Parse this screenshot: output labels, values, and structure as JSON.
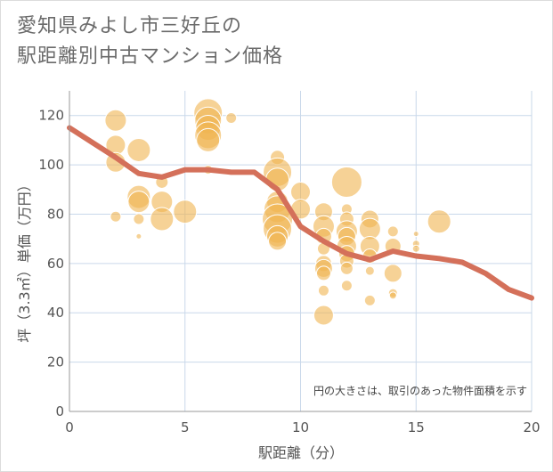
{
  "title_line1": "愛知県みよし市三好丘の",
  "title_line2": "駅距離別中古マンション価格",
  "chart_data": {
    "type": "scatter",
    "xlabel": "駅距離（分）",
    "ylabel": "坪（3.3㎡）単価（万円）",
    "xlim": [
      0,
      20
    ],
    "ylim": [
      0,
      130
    ],
    "x_ticks": [
      "0",
      "5",
      "10",
      "15",
      "20"
    ],
    "y_ticks": [
      "0",
      "20",
      "40",
      "60",
      "80",
      "100",
      "120"
    ],
    "note": "円の大きさは、取引のあった物件面積を示す",
    "grid": true,
    "colors": {
      "bubble": "#f0b450",
      "line": "#d4705a",
      "grid": "#c9d8ea",
      "axis": "#999999"
    },
    "bubbles": [
      {
        "x": 2,
        "y": 118,
        "s": 12
      },
      {
        "x": 2,
        "y": 108,
        "s": 11
      },
      {
        "x": 2,
        "y": 101,
        "s": 11
      },
      {
        "x": 2,
        "y": 79,
        "s": 6
      },
      {
        "x": 3,
        "y": 106,
        "s": 13
      },
      {
        "x": 3,
        "y": 87,
        "s": 13
      },
      {
        "x": 3,
        "y": 85,
        "s": 12
      },
      {
        "x": 3,
        "y": 78,
        "s": 6
      },
      {
        "x": 3,
        "y": 71,
        "s": 3
      },
      {
        "x": 4,
        "y": 93,
        "s": 7
      },
      {
        "x": 4,
        "y": 85,
        "s": 12
      },
      {
        "x": 4,
        "y": 78,
        "s": 13
      },
      {
        "x": 5,
        "y": 81,
        "s": 13
      },
      {
        "x": 6,
        "y": 121,
        "s": 16
      },
      {
        "x": 6,
        "y": 118,
        "s": 15
      },
      {
        "x": 6,
        "y": 115,
        "s": 14
      },
      {
        "x": 6,
        "y": 112,
        "s": 15
      },
      {
        "x": 6,
        "y": 110,
        "s": 13
      },
      {
        "x": 6,
        "y": 98,
        "s": 5
      },
      {
        "x": 7,
        "y": 119,
        "s": 6
      },
      {
        "x": 9,
        "y": 103,
        "s": 8
      },
      {
        "x": 9,
        "y": 97,
        "s": 16
      },
      {
        "x": 9,
        "y": 94,
        "s": 13
      },
      {
        "x": 9,
        "y": 85,
        "s": 12
      },
      {
        "x": 9,
        "y": 82,
        "s": 15
      },
      {
        "x": 9,
        "y": 78,
        "s": 17
      },
      {
        "x": 9,
        "y": 74,
        "s": 16
      },
      {
        "x": 9,
        "y": 71,
        "s": 12
      },
      {
        "x": 9,
        "y": 69,
        "s": 10
      },
      {
        "x": 10,
        "y": 89,
        "s": 11
      },
      {
        "x": 10,
        "y": 82,
        "s": 11
      },
      {
        "x": 11,
        "y": 81,
        "s": 10
      },
      {
        "x": 11,
        "y": 75,
        "s": 12
      },
      {
        "x": 11,
        "y": 71,
        "s": 9
      },
      {
        "x": 11,
        "y": 66,
        "s": 7
      },
      {
        "x": 11,
        "y": 60,
        "s": 9
      },
      {
        "x": 11,
        "y": 58,
        "s": 10
      },
      {
        "x": 11,
        "y": 56,
        "s": 8
      },
      {
        "x": 11,
        "y": 49,
        "s": 6
      },
      {
        "x": 11,
        "y": 39,
        "s": 11
      },
      {
        "x": 12,
        "y": 93,
        "s": 17
      },
      {
        "x": 12,
        "y": 82,
        "s": 6
      },
      {
        "x": 12,
        "y": 78,
        "s": 8
      },
      {
        "x": 12,
        "y": 73,
        "s": 12
      },
      {
        "x": 12,
        "y": 71,
        "s": 10
      },
      {
        "x": 12,
        "y": 67,
        "s": 11
      },
      {
        "x": 12,
        "y": 64,
        "s": 9
      },
      {
        "x": 12,
        "y": 61,
        "s": 8
      },
      {
        "x": 12,
        "y": 58,
        "s": 7
      },
      {
        "x": 12,
        "y": 51,
        "s": 6
      },
      {
        "x": 13,
        "y": 78,
        "s": 10
      },
      {
        "x": 13,
        "y": 74,
        "s": 12
      },
      {
        "x": 13,
        "y": 67,
        "s": 11
      },
      {
        "x": 13,
        "y": 63,
        "s": 8
      },
      {
        "x": 13,
        "y": 57,
        "s": 5
      },
      {
        "x": 13,
        "y": 45,
        "s": 6
      },
      {
        "x": 14,
        "y": 73,
        "s": 6
      },
      {
        "x": 14,
        "y": 67,
        "s": 9
      },
      {
        "x": 14,
        "y": 56,
        "s": 10
      },
      {
        "x": 14,
        "y": 48,
        "s": 5
      },
      {
        "x": 14,
        "y": 47,
        "s": 4
      },
      {
        "x": 15,
        "y": 72,
        "s": 3
      },
      {
        "x": 15,
        "y": 68,
        "s": 4
      },
      {
        "x": 15,
        "y": 66,
        "s": 4
      },
      {
        "x": 16,
        "y": 77,
        "s": 13
      }
    ],
    "trend": {
      "x": [
        0,
        1,
        2,
        3,
        4,
        5,
        6,
        7,
        8,
        9,
        10,
        11,
        12,
        13,
        14,
        15,
        16,
        17,
        18,
        19,
        20
      ],
      "y": [
        115,
        109,
        103,
        96.5,
        95,
        98,
        98,
        97,
        97,
        90,
        75,
        69,
        64,
        61.5,
        65,
        63,
        62,
        60.5,
        56,
        49.5,
        46
      ]
    }
  }
}
